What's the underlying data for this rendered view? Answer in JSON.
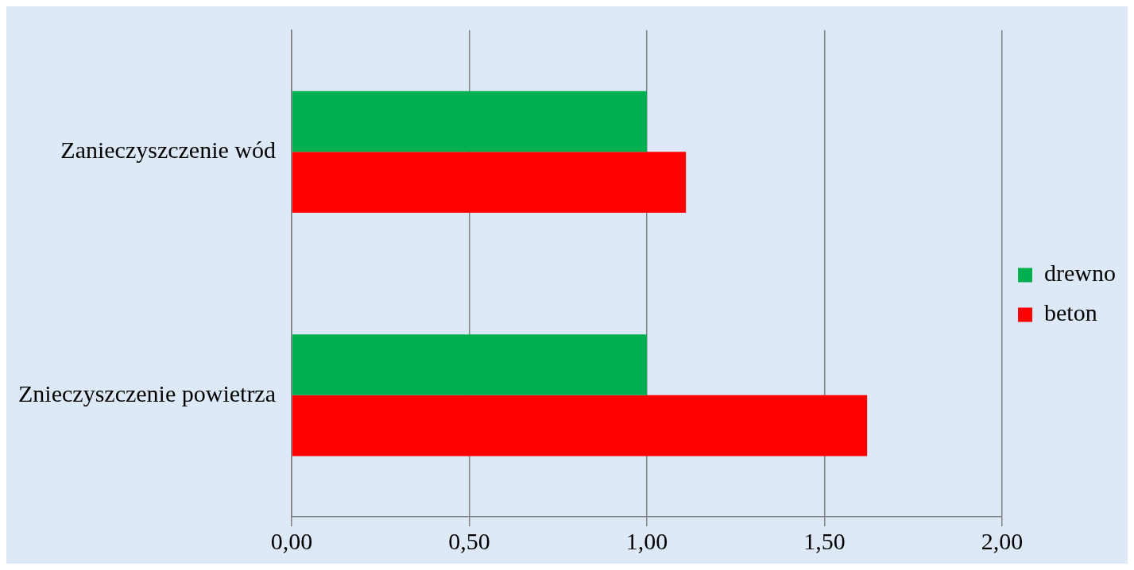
{
  "chart_data": {
    "type": "bar",
    "orientation": "horizontal",
    "categories": [
      "Zanieczyszczenie wód",
      "Znieczyszczenie powietrza"
    ],
    "series": [
      {
        "name": "drewno",
        "color": "#00b050",
        "values": [
          1.0,
          1.0
        ]
      },
      {
        "name": "beton",
        "color": "#ff0000",
        "values": [
          1.11,
          1.62
        ]
      }
    ],
    "xlim": [
      0,
      2
    ],
    "xticks": [
      {
        "value": 0,
        "label": "0,00"
      },
      {
        "value": 0.5,
        "label": "0,50"
      },
      {
        "value": 1,
        "label": "1,00"
      },
      {
        "value": 1.5,
        "label": "1,50"
      },
      {
        "value": 2,
        "label": "2,00"
      }
    ],
    "grid": "x",
    "legend": "right"
  }
}
